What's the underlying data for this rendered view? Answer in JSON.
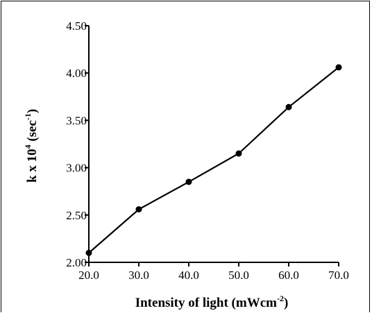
{
  "chart_data": {
    "type": "line",
    "title": "",
    "xlabel": {
      "main": "Intensity of light (mWcm",
      "sup": "-2",
      "tail": ")"
    },
    "ylabel": {
      "pre": "k x 10",
      "sup1": "4",
      "mid": " (sec",
      "sup2": "-1",
      "tail": ")"
    },
    "xlim": [
      20,
      70
    ],
    "ylim": [
      2.0,
      4.5
    ],
    "x_ticks": [
      "20.0",
      "30.0",
      "40.0",
      "50.0",
      "60.0",
      "70.0"
    ],
    "y_ticks": [
      "2.00",
      "2.50",
      "3.00",
      "3.50",
      "4.00",
      "4.50"
    ],
    "grid": false,
    "series": [
      {
        "x": [
          20,
          30,
          40,
          50,
          60,
          70
        ],
        "y": [
          2.1,
          2.56,
          2.85,
          3.15,
          3.64,
          4.06
        ]
      }
    ]
  }
}
